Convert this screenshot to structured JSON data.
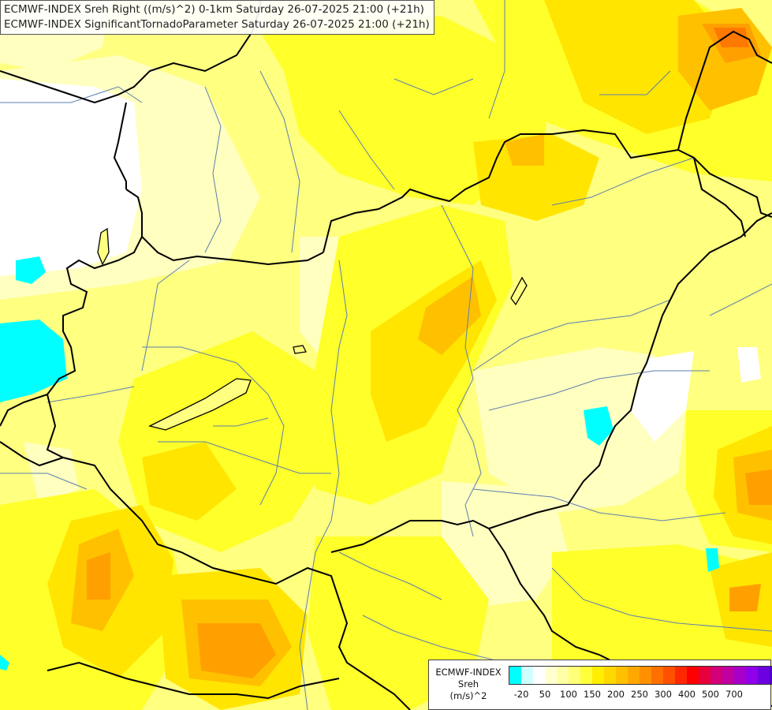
{
  "header": {
    "line1": "ECMWF-INDEX Sreh Right ((m/s)^2) 0-1km Saturday 26-07-2025 21:00 (+21h)",
    "line2": "ECMWF-INDEX SignificantTornadoParameter Saturday 26-07-2025 21:00 (+21h)"
  },
  "legend": {
    "line1": "ECMWF-INDEX",
    "line2": "Sreh",
    "line3": "(m/s)^2",
    "colors": [
      "#00ffff",
      "#d0ffff",
      "#ffffff",
      "#ffffd0",
      "#ffffa8",
      "#ffff78",
      "#ffff3c",
      "#ffee00",
      "#ffd800",
      "#ffc000",
      "#ffa800",
      "#ff9000",
      "#ff7000",
      "#ff5000",
      "#ff2800",
      "#ff0000",
      "#e8003c",
      "#d40078",
      "#c000a0",
      "#a800c8",
      "#9000e8",
      "#6c00e0",
      "#4800c8",
      "#2400a8",
      "#000090"
    ],
    "ticks": [
      "-20",
      "50",
      "100",
      "150",
      "200",
      "250",
      "300",
      "400",
      "500",
      "700"
    ]
  },
  "map": {
    "colors": {
      "pale": "#ffffc0",
      "light": "#ffff80",
      "yellow": "#ffff2a",
      "gold": "#ffe500",
      "amber": "#ffc000",
      "orange": "#ffa000",
      "deep": "#ff7800",
      "red": "#ff5000",
      "cyan": "#00ffff",
      "border": "#000000",
      "river": "#5d7fae"
    }
  }
}
